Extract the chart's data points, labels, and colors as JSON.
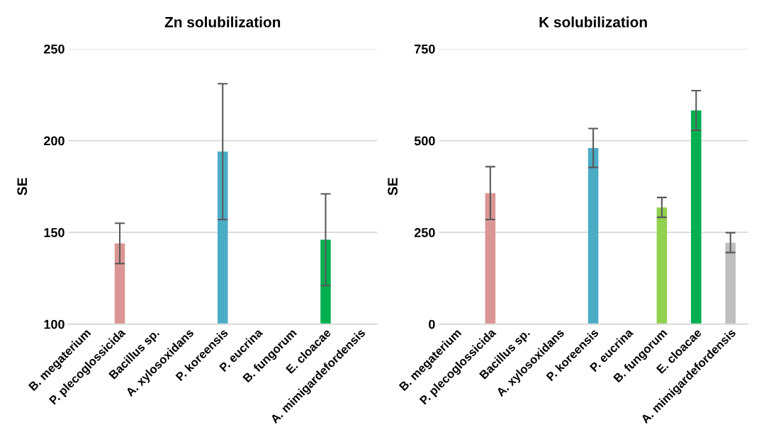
{
  "chart_data": [
    {
      "type": "bar",
      "title": "Zn solubilization",
      "ylabel": "SE",
      "categories": [
        "B. megaterium",
        "P. plecoglossicida",
        "Bacillus sp.",
        "A. xylosoxidans",
        "P. koreensis",
        "P. eucrina",
        "B. fungorum",
        "E. cloacae",
        "A. mimigardefordensis"
      ],
      "values": [
        null,
        144,
        null,
        null,
        194,
        null,
        null,
        146,
        null
      ],
      "errors": [
        null,
        11,
        null,
        null,
        37,
        null,
        null,
        25,
        null
      ],
      "colors": [
        "#da9694",
        "#da9694",
        "#da9694",
        "#da9694",
        "#4bacc6",
        "#da9694",
        "#da9694",
        "#00b050",
        "#da9694"
      ],
      "ylim": [
        100,
        250
      ],
      "yticks": [
        100,
        150,
        200,
        250
      ],
      "grid": "y"
    },
    {
      "type": "bar",
      "title": "K solubilization",
      "ylabel": "SE",
      "categories": [
        "B. megaterium",
        "P. plecoglossicida",
        "Bacillus sp.",
        "A. xylosoxidans",
        "P. koreensis",
        "P. eucrina",
        "B. fungorum",
        "E. cloacae",
        "A. mimigardefordensis"
      ],
      "values": [
        0,
        357,
        0,
        0,
        480,
        0,
        318,
        582,
        222
      ],
      "errors": [
        null,
        72,
        null,
        null,
        53,
        null,
        27,
        54,
        27
      ],
      "colors": [
        "#da9694",
        "#da9694",
        "#da9694",
        "#da9694",
        "#4bacc6",
        "#da9694",
        "#92d050",
        "#00b050",
        "#bfbfbf"
      ],
      "ylim": [
        0,
        750
      ],
      "yticks": [
        0,
        250,
        500,
        750
      ],
      "grid": "y"
    }
  ]
}
